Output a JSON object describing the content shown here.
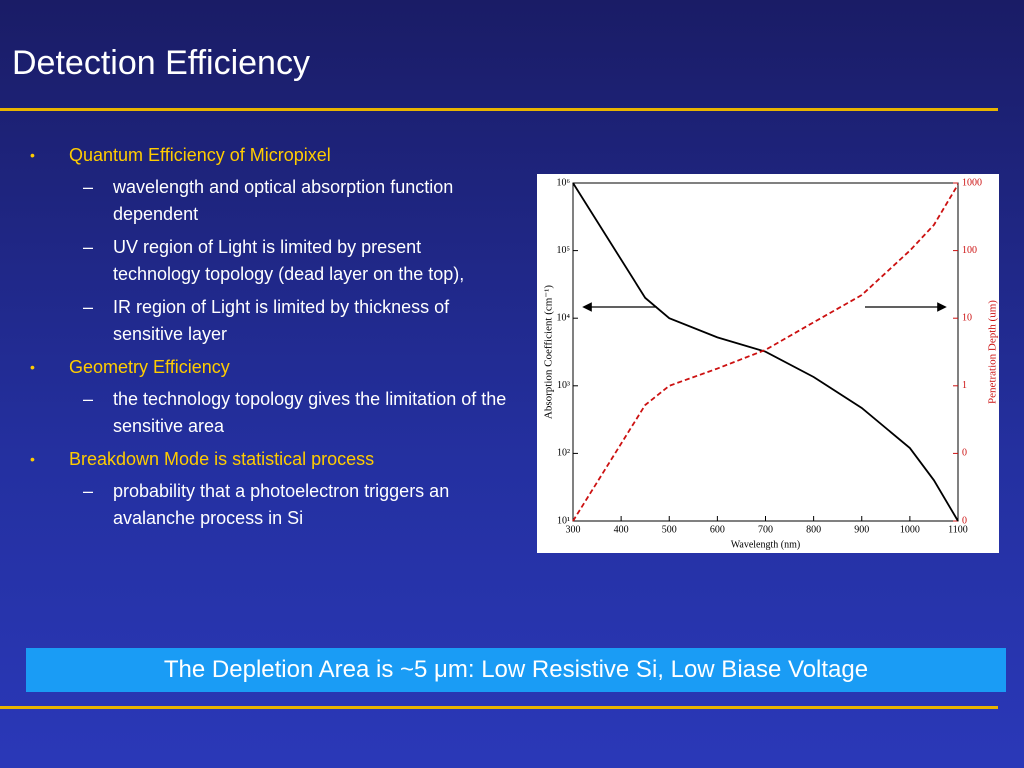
{
  "title": "Detection Efficiency",
  "bullets": [
    {
      "text": "Quantum Efficiency of Micropixel",
      "subs": [
        "wavelength and optical absorption function dependent",
        "UV region of Light is limited by present technology topology (dead layer on the top),",
        "IR region of Light is limited by thickness of sensitive layer"
      ]
    },
    {
      "text": "Geometry Efficiency",
      "subs": [
        "the technology topology gives the limitation of the sensitive area"
      ]
    },
    {
      "text": "Breakdown Mode is statistical process",
      "subs": [
        "probability that a photoelectron triggers an avalanche process in Si"
      ]
    }
  ],
  "callout": "The Depletion Area is ~5 μm: Low Resistive Si, Low Biase Voltage",
  "chart_data": {
    "type": "line",
    "xlabel": "Wavelength (nm)",
    "ylabel": "Absorption Coefficient (cm⁻¹)",
    "y2label": "Penetration Depth (um)",
    "x": [
      300,
      450,
      500,
      600,
      700,
      800,
      900,
      1000,
      1050,
      1100
    ],
    "series": [
      {
        "name": "Absorption Coefficient",
        "color": "#000000",
        "values": [
          1000000,
          20000,
          10000,
          5200,
          3200,
          1350,
          470,
          120,
          40,
          10
        ]
      },
      {
        "name": "Penetration Depth",
        "color": "#cc1111",
        "axis": "y2",
        "dashed": true,
        "values": [
          0.01,
          0.52,
          1.0,
          1.8,
          3.4,
          8.7,
          22,
          100,
          240,
          950
        ]
      }
    ],
    "xlim": [
      300,
      1100
    ],
    "xticks": [
      300,
      400,
      500,
      600,
      700,
      800,
      900,
      1000,
      1100
    ],
    "ylim": [
      10,
      1000000
    ],
    "ylog": true,
    "yticks": [
      {
        "value": 10,
        "label": "10¹"
      },
      {
        "value": 100,
        "label": "10²"
      },
      {
        "value": 1000,
        "label": "10³"
      },
      {
        "value": 10000,
        "label": "10⁴"
      },
      {
        "value": 100000,
        "label": "10⁵"
      },
      {
        "value": 1000000,
        "label": "10⁶"
      }
    ],
    "y2lim": [
      0.01,
      1000
    ],
    "y2log": true,
    "y2ticks": [
      {
        "value": 0.01,
        "label": "0"
      },
      {
        "value": 0.1,
        "label": "0"
      },
      1,
      10,
      100,
      1000
    ]
  }
}
